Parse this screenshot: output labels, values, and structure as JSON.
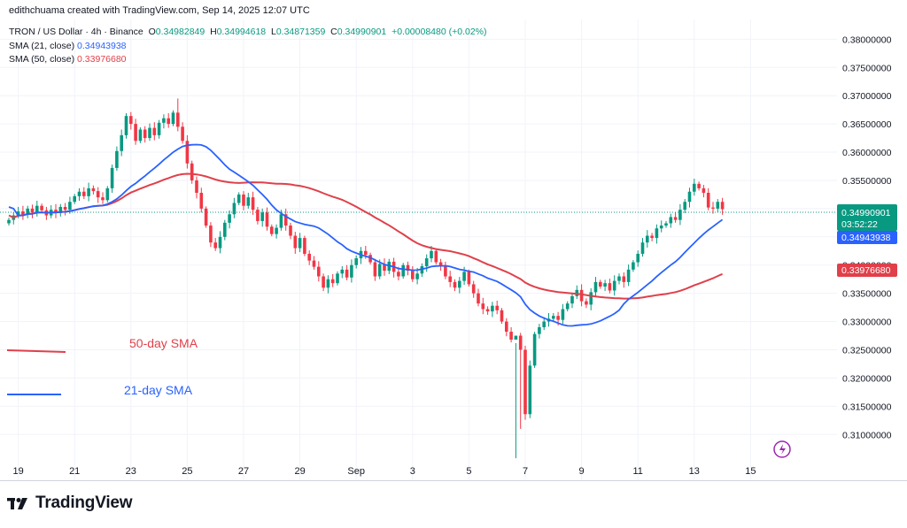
{
  "header": {
    "published": "edithchuama created with TradingView.com, Sep 14, 2025 12:07 UTC",
    "symbol": "TRON / US Dollar · 4h · Binance",
    "o_label": "O",
    "o": "0.34982849",
    "h_label": "H",
    "h": "0.34994618",
    "l_label": "L",
    "l": "0.34871359",
    "c_label": "C",
    "c": "0.34990901",
    "change": "+0.00008480 (+0.02%)"
  },
  "legend": {
    "sma21_label": "SMA (21, close)",
    "sma21_value": "0.34943938",
    "sma50_label": "SMA (50, close)",
    "sma50_value": "0.33976680"
  },
  "price_tags": {
    "last": "0.34990901",
    "countdown": "03:52:22",
    "sma21": "0.34943938",
    "sma50": "0.33976680"
  },
  "annotations": {
    "sma50": "50-day SMA",
    "sma21": "21-day SMA"
  },
  "logo": {
    "text": "TradingView"
  },
  "colors": {
    "up": "#089981",
    "down": "#f23645",
    "sma21": "#2962ff",
    "sma50": "#e0404a",
    "grid": "#f0f3fa"
  },
  "chart_data": {
    "type": "candlestick",
    "title": "TRON / US Dollar · 4h · Binance",
    "ylim": [
      0.3055,
      0.3835
    ],
    "yticks": [
      "0.38000000",
      "0.37500000",
      "0.37000000",
      "0.36500000",
      "0.36000000",
      "0.35500000",
      "0.35000000",
      "0.34500000",
      "0.34000000",
      "0.33500000",
      "0.33000000",
      "0.32500000",
      "0.32000000",
      "0.31500000",
      "0.31000000"
    ],
    "xticks": [
      {
        "label": "19",
        "i": 2
      },
      {
        "label": "21",
        "i": 14
      },
      {
        "label": "23",
        "i": 26
      },
      {
        "label": "25",
        "i": 38
      },
      {
        "label": "27",
        "i": 50
      },
      {
        "label": "29",
        "i": 62
      },
      {
        "label": "Sep",
        "i": 74
      },
      {
        "label": "3",
        "i": 86
      },
      {
        "label": "5",
        "i": 98
      },
      {
        "label": "7",
        "i": 110
      },
      {
        "label": "9",
        "i": 122
      },
      {
        "label": "11",
        "i": 134
      },
      {
        "label": "13",
        "i": 146
      },
      {
        "label": "15",
        "i": 158
      }
    ],
    "closes": [
      0.348,
      0.3488,
      0.3495,
      0.3489,
      0.35,
      0.3493,
      0.3505,
      0.3497,
      0.3488,
      0.3498,
      0.3492,
      0.3503,
      0.3498,
      0.3512,
      0.3522,
      0.353,
      0.3522,
      0.3536,
      0.3531,
      0.352,
      0.3515,
      0.3536,
      0.3572,
      0.3602,
      0.363,
      0.3664,
      0.365,
      0.362,
      0.364,
      0.3625,
      0.3643,
      0.363,
      0.3652,
      0.366,
      0.365,
      0.367,
      0.3645,
      0.362,
      0.358,
      0.355,
      0.3528,
      0.35,
      0.347,
      0.344,
      0.343,
      0.345,
      0.3475,
      0.349,
      0.351,
      0.3525,
      0.3505,
      0.352,
      0.3498,
      0.3478,
      0.3493,
      0.3468,
      0.3455,
      0.3466,
      0.349,
      0.347,
      0.3452,
      0.343,
      0.3448,
      0.342,
      0.3408,
      0.3397,
      0.338,
      0.336,
      0.3375,
      0.3368,
      0.3385,
      0.3392,
      0.3378,
      0.34,
      0.3412,
      0.3425,
      0.3418,
      0.3405,
      0.338,
      0.3402,
      0.339,
      0.3406,
      0.3388,
      0.338,
      0.34,
      0.339,
      0.3375,
      0.3385,
      0.3398,
      0.3412,
      0.3425,
      0.3405,
      0.3398,
      0.338,
      0.337,
      0.336,
      0.3372,
      0.3388,
      0.3366,
      0.335,
      0.3332,
      0.3322,
      0.3318,
      0.3328,
      0.332,
      0.33,
      0.3282,
      0.3268,
      0.3275,
      0.325,
      0.3136,
      0.3222,
      0.3278,
      0.329,
      0.33,
      0.3305,
      0.331,
      0.3303,
      0.3322,
      0.3332,
      0.3345,
      0.3356,
      0.3336,
      0.333,
      0.3352,
      0.337,
      0.3362,
      0.3368,
      0.3355,
      0.3372,
      0.338,
      0.337,
      0.3392,
      0.3405,
      0.342,
      0.344,
      0.3452,
      0.3448,
      0.3465,
      0.347,
      0.3474,
      0.3485,
      0.348,
      0.3498,
      0.3512,
      0.353,
      0.3544,
      0.3536,
      0.3528,
      0.3502,
      0.35,
      0.3512,
      0.3499
    ]
  }
}
